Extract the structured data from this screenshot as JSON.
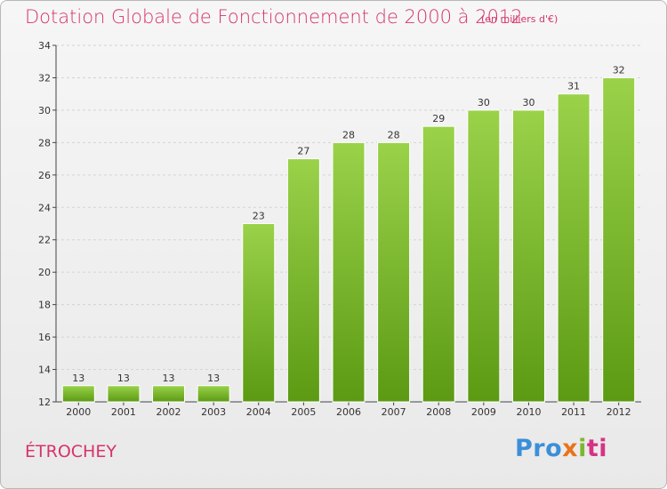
{
  "header": {
    "title": "Dotation Globale de Fonctionnement de 2000 à 2012",
    "unit": "(en milliers d'€)"
  },
  "footer": {
    "commune": "ÉTROCHEY",
    "logo_parts": [
      "Pro",
      "x",
      "i",
      "ti"
    ]
  },
  "colors": {
    "accent": "#d6336c",
    "bar_top": "#9ad24a",
    "bar_bottom": "#5c9a14"
  },
  "chart_data": {
    "type": "bar",
    "title": "Dotation Globale de Fonctionnement de 2000 à 2012",
    "subtitle": "(en milliers d'€)",
    "xlabel": "",
    "ylabel": "",
    "categories": [
      "2000",
      "2001",
      "2002",
      "2003",
      "2004",
      "2005",
      "2006",
      "2007",
      "2008",
      "2009",
      "2010",
      "2011",
      "2012"
    ],
    "values": [
      13,
      13,
      13,
      13,
      23,
      27,
      28,
      28,
      29,
      30,
      30,
      31,
      32
    ],
    "ylim": [
      12,
      34
    ],
    "yticks": [
      12,
      14,
      16,
      18,
      20,
      22,
      24,
      26,
      28,
      30,
      32,
      34
    ],
    "grid": "horizontal",
    "legend": "none"
  }
}
